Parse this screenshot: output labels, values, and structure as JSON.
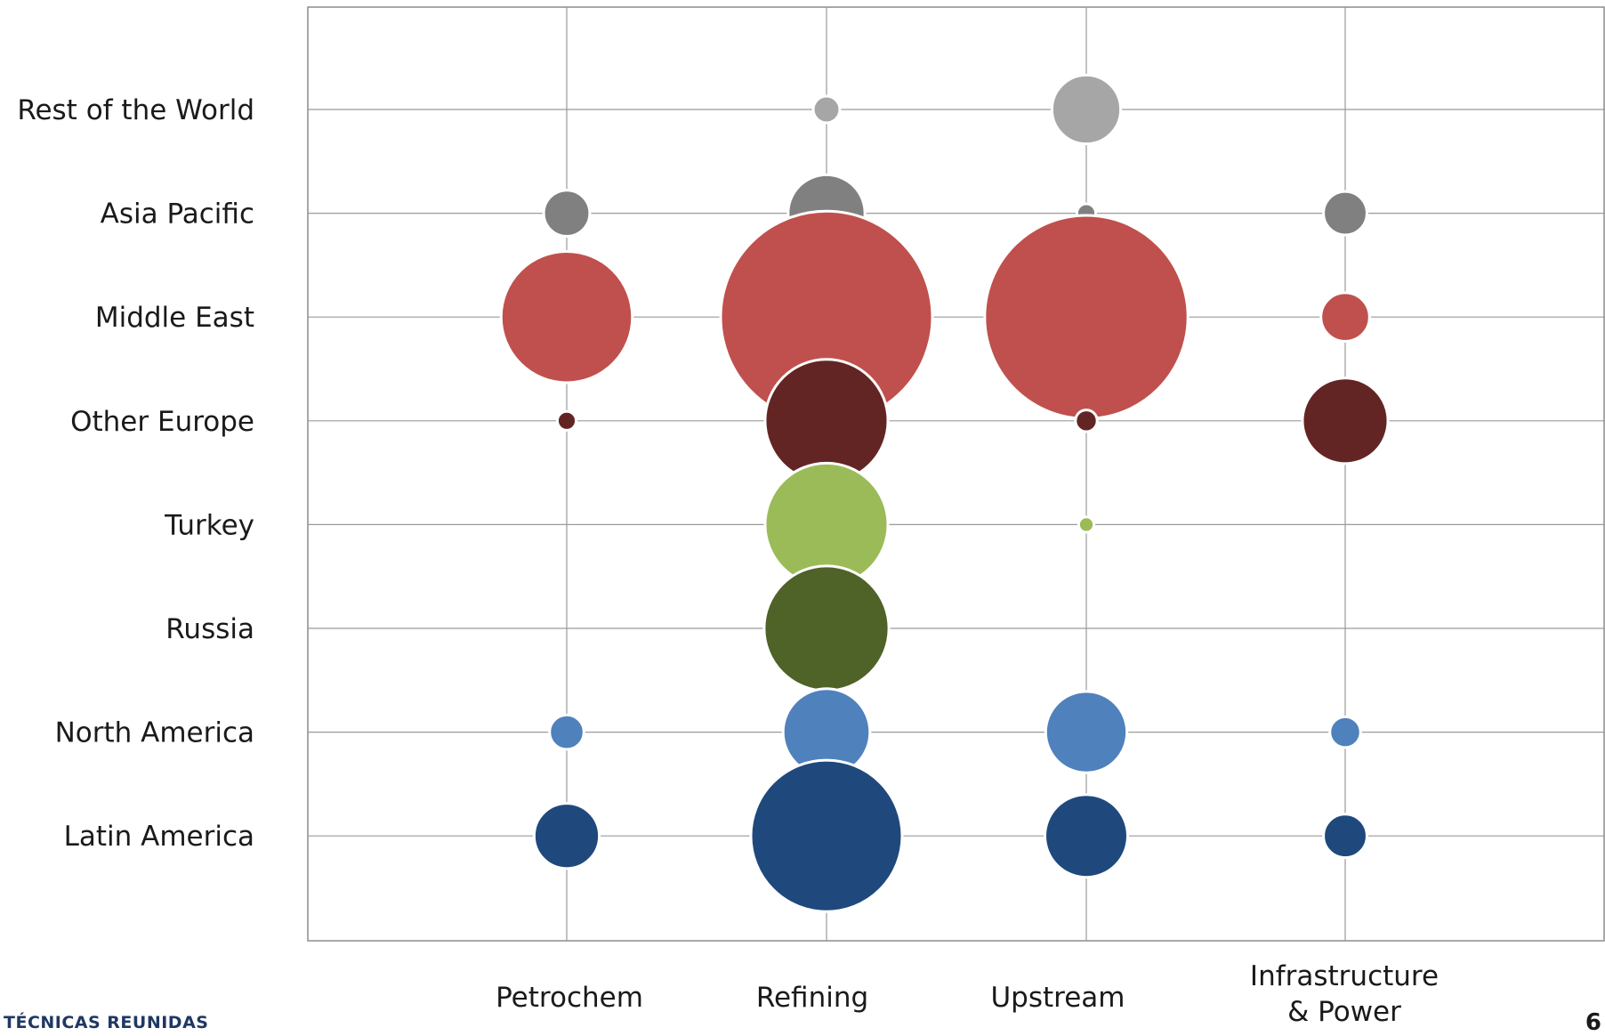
{
  "chart_data": {
    "type": "bubble",
    "categories_x": [
      "Petrochem",
      "Refining",
      "Upstream",
      "Infrastructure & Power"
    ],
    "x_label_lines": [
      [
        "Petrochem"
      ],
      [
        "Refining"
      ],
      [
        "Upstream"
      ],
      [
        "Infrastructure",
        "& Power"
      ]
    ],
    "categories_y": [
      "Latin America",
      "North America",
      "Russia",
      "Turkey",
      "Other Europe",
      "Middle East",
      "Asia Pacific",
      "Rest of the World"
    ],
    "series": [
      {
        "name": "Latin America",
        "color": "#1f497d",
        "values": [
          18,
          97,
          29,
          8
        ]
      },
      {
        "name": "North America",
        "color": "#4f81bd",
        "values": [
          5,
          32,
          28,
          4
        ]
      },
      {
        "name": "Russia",
        "color": "#4f6228",
        "values": [
          0,
          66,
          0,
          0
        ]
      },
      {
        "name": "Turkey",
        "color": "#9bbb59",
        "values": [
          0,
          64,
          1,
          0
        ]
      },
      {
        "name": "Other Europe",
        "color": "#632523",
        "values": [
          1.5,
          64,
          2,
          31
        ]
      },
      {
        "name": "Middle East",
        "color": "#c0504d",
        "values": [
          73,
          190,
          175,
          10
        ]
      },
      {
        "name": "Asia Pacific",
        "color": "#808080",
        "values": [
          9,
          25,
          1.5,
          8
        ]
      },
      {
        "name": "Rest of the World",
        "color": "#a6a6a6",
        "values": [
          0,
          3,
          20,
          0
        ]
      }
    ],
    "grid": true,
    "legend": "none"
  },
  "footer": {
    "brand": "TÉCNICAS REUNIDAS",
    "page": "6"
  }
}
